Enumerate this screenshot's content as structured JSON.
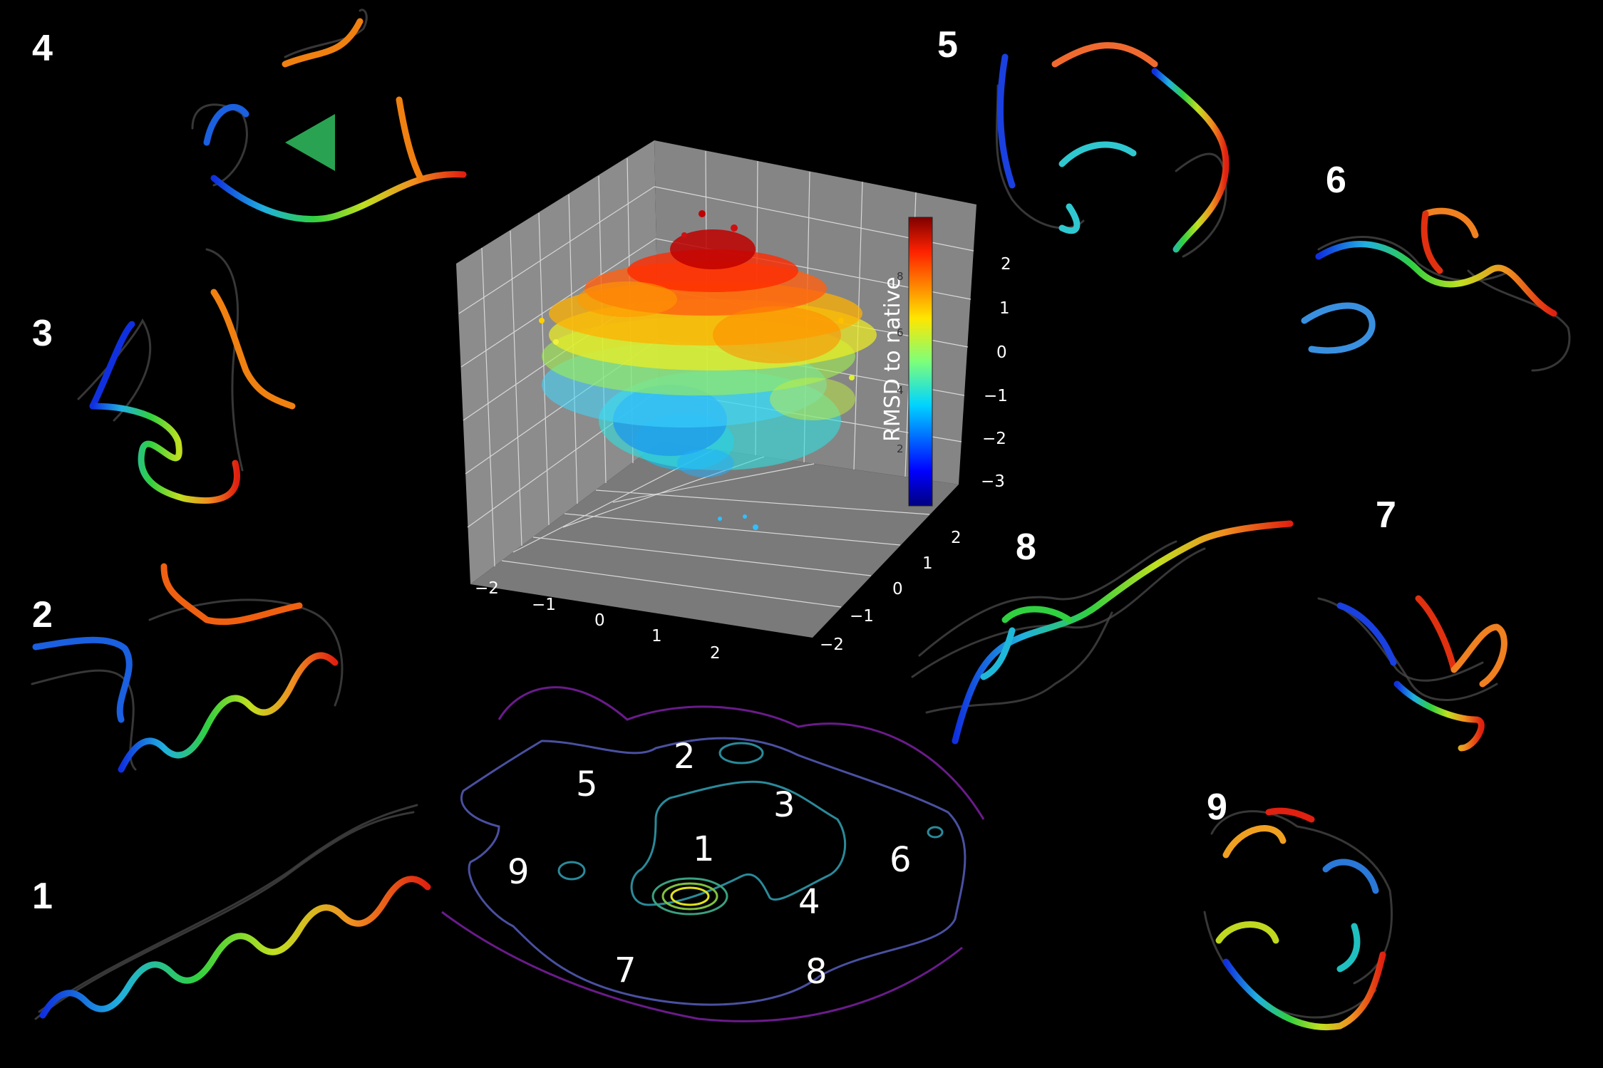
{
  "structures": [
    {
      "label": "1"
    },
    {
      "label": "2"
    },
    {
      "label": "3"
    },
    {
      "label": "4"
    },
    {
      "label": "5"
    },
    {
      "label": "6"
    },
    {
      "label": "7"
    },
    {
      "label": "8"
    },
    {
      "label": "9"
    }
  ],
  "contour_map": {
    "labels": [
      "1",
      "2",
      "3",
      "4",
      "5",
      "6",
      "7",
      "8",
      "9"
    ]
  },
  "scatter3d": {
    "colorbar_label": "RMSD to native",
    "colorbar_ticks": [
      "8",
      "6",
      "4",
      "2"
    ],
    "z_ticks": [
      "2",
      "1",
      "0",
      "−1",
      "−2",
      "−3"
    ],
    "x_ticks": [
      "−2",
      "−1",
      "0",
      "1",
      "2"
    ],
    "y_ticks": [
      "2",
      "1",
      "0",
      "−1",
      "−2"
    ]
  },
  "colors": {
    "background": "#000000",
    "pane": "#8c8c8c",
    "contour_outer": "#6a1b8a",
    "contour_mid": "#4a50a0",
    "contour_inner": "#2a8a9a",
    "contour_core": "#d8d820"
  }
}
